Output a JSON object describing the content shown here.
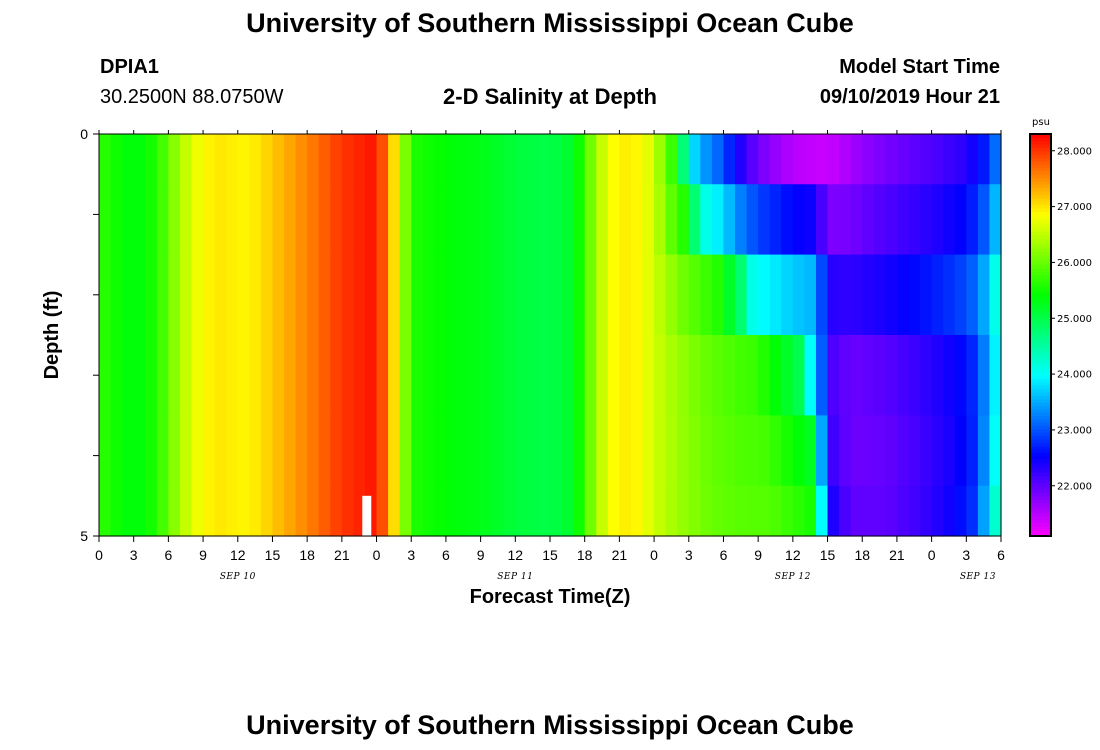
{
  "header": {
    "title_top": "University of Southern Mississippi Ocean Cube",
    "title_bottom": "University of Southern Mississippi Ocean Cube",
    "station_id": "DPIA1",
    "station_coords": "30.2500N 88.0750W",
    "plot_title": "2-D Salinity at Depth",
    "model_label": "Model Start Time",
    "model_time": "09/10/2019 Hour 21"
  },
  "chart_data": {
    "type": "heatmap",
    "title": "2-D Salinity at Depth",
    "xlabel": "Forecast Time(Z)",
    "ylabel": "Depth (ft)",
    "x_tick_labels": [
      "0",
      "3",
      "6",
      "9",
      "12",
      "15",
      "18",
      "21",
      "0",
      "3",
      "6",
      "9",
      "12",
      "15",
      "18",
      "21",
      "0",
      "3",
      "6",
      "9",
      "12",
      "15",
      "18",
      "21",
      "0",
      "3",
      "6"
    ],
    "day_labels": [
      {
        "label": "SEP 10",
        "hour_center": 12
      },
      {
        "label": "SEP 11",
        "hour_center": 36
      },
      {
        "label": "SEP 12",
        "hour_center": 60
      },
      {
        "label": "SEP 13",
        "hour_center": 76
      }
    ],
    "xlim_hours": [
      0,
      78
    ],
    "y_tick_labels": [
      "0",
      "5"
    ],
    "ylim_ft": [
      0,
      5
    ],
    "depth_levels_ft": [
      0.25,
      1.0,
      2.0,
      3.0,
      4.0,
      4.75
    ],
    "colorbar": {
      "unit": "psu",
      "tick_labels": [
        "22.000",
        "23.000",
        "24.000",
        "25.000",
        "26.000",
        "27.000",
        "28.000"
      ],
      "range": [
        21.1,
        28.3
      ]
    },
    "surface_profile": [
      [
        0,
        25.7
      ],
      [
        3,
        25.3
      ],
      [
        5,
        25.6
      ],
      [
        6,
        26.0
      ],
      [
        8,
        26.7
      ],
      [
        10,
        27.0
      ],
      [
        13,
        26.9
      ],
      [
        16,
        27.3
      ],
      [
        19,
        27.7
      ],
      [
        21,
        28.0
      ],
      [
        24,
        28.2
      ],
      [
        25,
        27.5
      ],
      [
        26,
        26.6
      ],
      [
        27,
        25.6
      ],
      [
        30,
        25.4
      ],
      [
        33,
        25.3
      ],
      [
        36,
        25.1
      ],
      [
        39,
        25.0
      ],
      [
        41,
        25.2
      ],
      [
        42,
        25.8
      ],
      [
        44,
        26.8
      ],
      [
        46,
        27.0
      ],
      [
        48,
        26.6
      ],
      [
        49,
        26.0
      ],
      [
        50,
        25.5
      ],
      [
        51,
        24.0
      ],
      [
        52,
        23.5
      ],
      [
        54,
        23.0
      ],
      [
        55,
        22.5
      ],
      [
        57,
        21.9
      ],
      [
        60,
        21.5
      ],
      [
        63,
        21.4
      ],
      [
        67,
        21.8
      ],
      [
        72,
        22.1
      ],
      [
        75,
        22.3
      ],
      [
        77,
        22.8
      ],
      [
        78,
        23.5
      ]
    ],
    "bottom_profile": [
      [
        0,
        25.7
      ],
      [
        3,
        25.3
      ],
      [
        5,
        25.6
      ],
      [
        6,
        26.0
      ],
      [
        8,
        26.7
      ],
      [
        10,
        27.0
      ],
      [
        13,
        26.9
      ],
      [
        16,
        27.3
      ],
      [
        19,
        27.7
      ],
      [
        21,
        28.0
      ],
      [
        24,
        28.2
      ],
      [
        25,
        27.5
      ],
      [
        26,
        26.6
      ],
      [
        27,
        25.6
      ],
      [
        30,
        25.4
      ],
      [
        33,
        25.3
      ],
      [
        36,
        25.1
      ],
      [
        39,
        25.0
      ],
      [
        41,
        25.2
      ],
      [
        42,
        25.8
      ],
      [
        44,
        26.8
      ],
      [
        46,
        27.0
      ],
      [
        48,
        26.6
      ],
      [
        50,
        26.3
      ],
      [
        53,
        26.0
      ],
      [
        56,
        25.9
      ],
      [
        58,
        25.9
      ],
      [
        61,
        25.6
      ],
      [
        62,
        25.5
      ],
      [
        62.3,
        24.6
      ],
      [
        63,
        22.5
      ],
      [
        65,
        22.0
      ],
      [
        68,
        22.0
      ],
      [
        71,
        22.2
      ],
      [
        74,
        22.5
      ],
      [
        76,
        22.9
      ],
      [
        77,
        24.0
      ],
      [
        78,
        24.5
      ]
    ],
    "transition_hours_by_level": [
      51,
      52,
      56,
      61,
      62,
      62.3
    ],
    "fresh_side_offset_by_level": [
      0,
      0.2,
      0.5,
      0.1,
      0,
      0
    ],
    "white_bar": {
      "hour": 23.2,
      "depth_top_ft": 4.5,
      "depth_bottom_ft": 5.0
    }
  }
}
